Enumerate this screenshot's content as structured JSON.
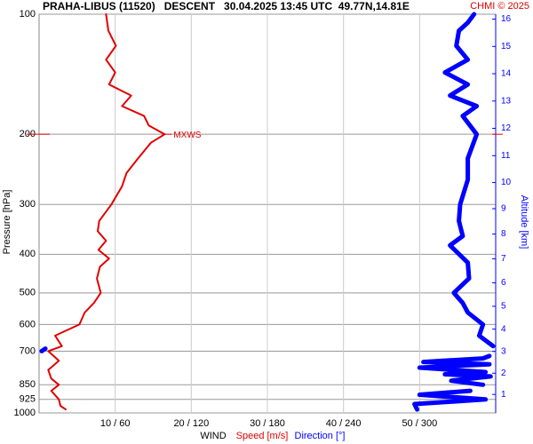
{
  "chart_data": {
    "type": "line",
    "title": "PRAHA-LIBUS (11520)   DESCENT   30.04.2025 13:45 UTC  49.77N,14.81E",
    "credit": "CHMI © 2025",
    "y_label": "Pressure [hPa]",
    "y2_label": "Altitude [km]",
    "x_label": "WIND",
    "ylim": [
      100,
      1000
    ],
    "log_y": true,
    "yticks": [
      100,
      200,
      300,
      400,
      500,
      600,
      700,
      850,
      925,
      1000
    ],
    "y2ticks": [
      1,
      2,
      3,
      4,
      5,
      6,
      7,
      8,
      9,
      10,
      11,
      12,
      13,
      14,
      15,
      16
    ],
    "xlim": [
      0,
      60
    ],
    "x2lim": [
      0,
      360
    ],
    "xticks": [
      {
        "value": 10,
        "label": "10 / 60"
      },
      {
        "value": 20,
        "label": "20 / 120"
      },
      {
        "value": 30,
        "label": "30 / 180"
      },
      {
        "value": 40,
        "label": "40 / 240"
      },
      {
        "value": 50,
        "label": "50 / 300"
      }
    ],
    "grid": true,
    "max_wind": {
      "label": "MXWS",
      "pressure": 200
    },
    "series": [
      {
        "name": "Speed [m/s]",
        "color": "#e00000",
        "axis": "x",
        "y": [
          100,
          110,
          120,
          130,
          140,
          150,
          160,
          170,
          180,
          190,
          200,
          210,
          230,
          250,
          270,
          300,
          330,
          350,
          370,
          390,
          410,
          430,
          460,
          500,
          530,
          560,
          600,
          640,
          680,
          700,
          740,
          780,
          820,
          850,
          880,
          925,
          960,
          980
        ],
        "values": [
          8.8,
          9.1,
          10.1,
          8.8,
          10.0,
          9.2,
          12.1,
          10.9,
          13.8,
          14.4,
          16.5,
          14.7,
          13.0,
          11.5,
          10.9,
          9.5,
          7.9,
          7.7,
          8.8,
          7.8,
          9.2,
          8.0,
          7.6,
          8.1,
          7.2,
          6.0,
          5.3,
          2.1,
          3.0,
          1.2,
          2.6,
          1.2,
          1.6,
          2.6,
          1.6,
          2.6,
          2.8,
          3.5
        ]
      },
      {
        "name": "Direction [°]",
        "color": "#0000ff",
        "axis": "x2",
        "y": [
          100,
          105,
          110,
          120,
          130,
          140,
          150,
          160,
          170,
          180,
          200,
          230,
          260,
          300,
          330,
          360,
          380,
          420,
          460,
          500,
          530,
          560,
          600,
          640,
          680,
          690,
          700,
          720,
          730,
          745,
          755,
          770,
          790,
          800,
          810,
          830,
          850,
          870,
          880,
          900,
          925,
          950,
          980
        ],
        "values": [
          343,
          338,
          331,
          329,
          338,
          320,
          338,
          324,
          345,
          334,
          345,
          338,
          338,
          332,
          331,
          334,
          324,
          338,
          339,
          327,
          334,
          338,
          350,
          347,
          358,
          5,
          2,
          355,
          350,
          303,
          355,
          300,
          352,
          320,
          356,
          325,
          350,
          2,
          340,
          300,
          352,
          296,
          298
        ]
      }
    ]
  }
}
